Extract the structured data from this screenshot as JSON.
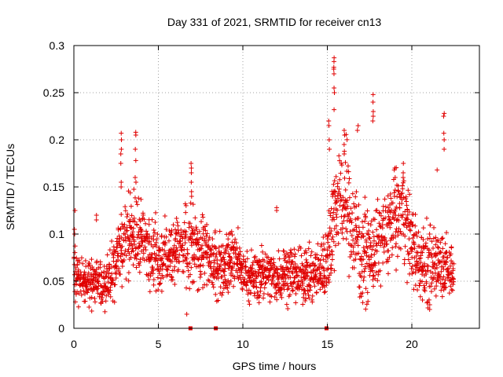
{
  "chart_data": {
    "type": "scatter",
    "title": "Day 331 of 2021, SRMTID for receiver cn13",
    "xlabel": "GPS time / hours",
    "ylabel": "SRMTID / TECUs",
    "xlim": [
      0,
      24
    ],
    "ylim": [
      0,
      0.3
    ],
    "x_ticks": [
      0,
      5,
      10,
      15,
      20
    ],
    "x_tick_labels": [
      "0",
      "5",
      "10",
      "15",
      "20"
    ],
    "y_ticks": [
      0,
      0.05,
      0.1,
      0.15,
      0.2,
      0.25,
      0.3
    ],
    "y_tick_labels": [
      "0",
      "0.05",
      "0.1",
      "0.15",
      "0.2",
      "0.25",
      "0.3"
    ],
    "grid": true,
    "marker": "plus",
    "color": "#e00000",
    "baseline_profile": {
      "hours": [
        0.0,
        0.5,
        1.0,
        1.5,
        2.0,
        2.5,
        3.0,
        3.5,
        4.0,
        4.5,
        5.0,
        5.5,
        6.0,
        6.5,
        7.0,
        7.5,
        8.0,
        8.5,
        9.0,
        9.5,
        10.0,
        10.5,
        11.0,
        11.5,
        12.0,
        12.5,
        13.0,
        13.5,
        14.0,
        14.5,
        15.0,
        15.5,
        16.0,
        16.5,
        17.0,
        17.5,
        18.0,
        18.5,
        19.0,
        19.5,
        20.0,
        20.5,
        21.0,
        21.5,
        22.0,
        22.5
      ],
      "median": [
        0.06,
        0.055,
        0.05,
        0.045,
        0.05,
        0.075,
        0.095,
        0.1,
        0.095,
        0.085,
        0.075,
        0.075,
        0.08,
        0.09,
        0.08,
        0.085,
        0.075,
        0.065,
        0.065,
        0.075,
        0.06,
        0.055,
        0.055,
        0.06,
        0.055,
        0.06,
        0.06,
        0.055,
        0.055,
        0.06,
        0.07,
        0.13,
        0.14,
        0.11,
        0.08,
        0.075,
        0.09,
        0.1,
        0.12,
        0.13,
        0.085,
        0.07,
        0.065,
        0.075,
        0.065,
        0.06
      ],
      "spread": [
        0.025,
        0.02,
        0.02,
        0.018,
        0.02,
        0.025,
        0.03,
        0.028,
        0.027,
        0.025,
        0.025,
        0.025,
        0.025,
        0.03,
        0.028,
        0.028,
        0.025,
        0.022,
        0.022,
        0.025,
        0.02,
        0.018,
        0.018,
        0.02,
        0.02,
        0.02,
        0.02,
        0.018,
        0.02,
        0.022,
        0.025,
        0.04,
        0.045,
        0.04,
        0.035,
        0.03,
        0.03,
        0.03,
        0.03,
        0.035,
        0.03,
        0.028,
        0.028,
        0.028,
        0.025,
        0.02
      ]
    },
    "peaks": [
      {
        "x": 0.05,
        "values": [
          0.125,
          0.105,
          0.1
        ]
      },
      {
        "x": 1.35,
        "values": [
          0.115,
          0.12
        ]
      },
      {
        "x": 2.8,
        "values": [
          0.207,
          0.2,
          0.19,
          0.185,
          0.175,
          0.155,
          0.15
        ]
      },
      {
        "x": 3.65,
        "values": [
          0.208,
          0.205,
          0.19,
          0.178,
          0.16,
          0.155
        ]
      },
      {
        "x": 6.7,
        "values": [
          0.015
        ]
      },
      {
        "x": 6.95,
        "values": [
          0.175,
          0.17,
          0.165,
          0.155,
          0.145,
          0.14
        ]
      },
      {
        "x": 12.0,
        "values": [
          0.128,
          0.125
        ]
      },
      {
        "x": 15.4,
        "values": [
          0.287,
          0.283,
          0.277,
          0.275,
          0.27,
          0.255,
          0.25,
          0.232
        ]
      },
      {
        "x": 15.1,
        "values": [
          0.22,
          0.215,
          0.2,
          0.19
        ]
      },
      {
        "x": 16.0,
        "values": [
          0.21,
          0.205,
          0.195,
          0.185
        ]
      },
      {
        "x": 16.8,
        "values": [
          0.215,
          0.21
        ]
      },
      {
        "x": 17.7,
        "values": [
          0.248,
          0.24,
          0.23,
          0.225,
          0.22
        ]
      },
      {
        "x": 19.0,
        "values": [
          0.17,
          0.16
        ]
      },
      {
        "x": 19.5,
        "values": [
          0.175,
          0.165,
          0.16
        ]
      },
      {
        "x": 21.05,
        "values": [
          0.02,
          0.025
        ]
      },
      {
        "x": 21.5,
        "values": [
          0.168
        ]
      },
      {
        "x": 21.9,
        "values": [
          0.228,
          0.225,
          0.207,
          0.2,
          0.19
        ]
      }
    ],
    "zero_markers_x": [
      6.9,
      8.4,
      14.95
    ]
  }
}
